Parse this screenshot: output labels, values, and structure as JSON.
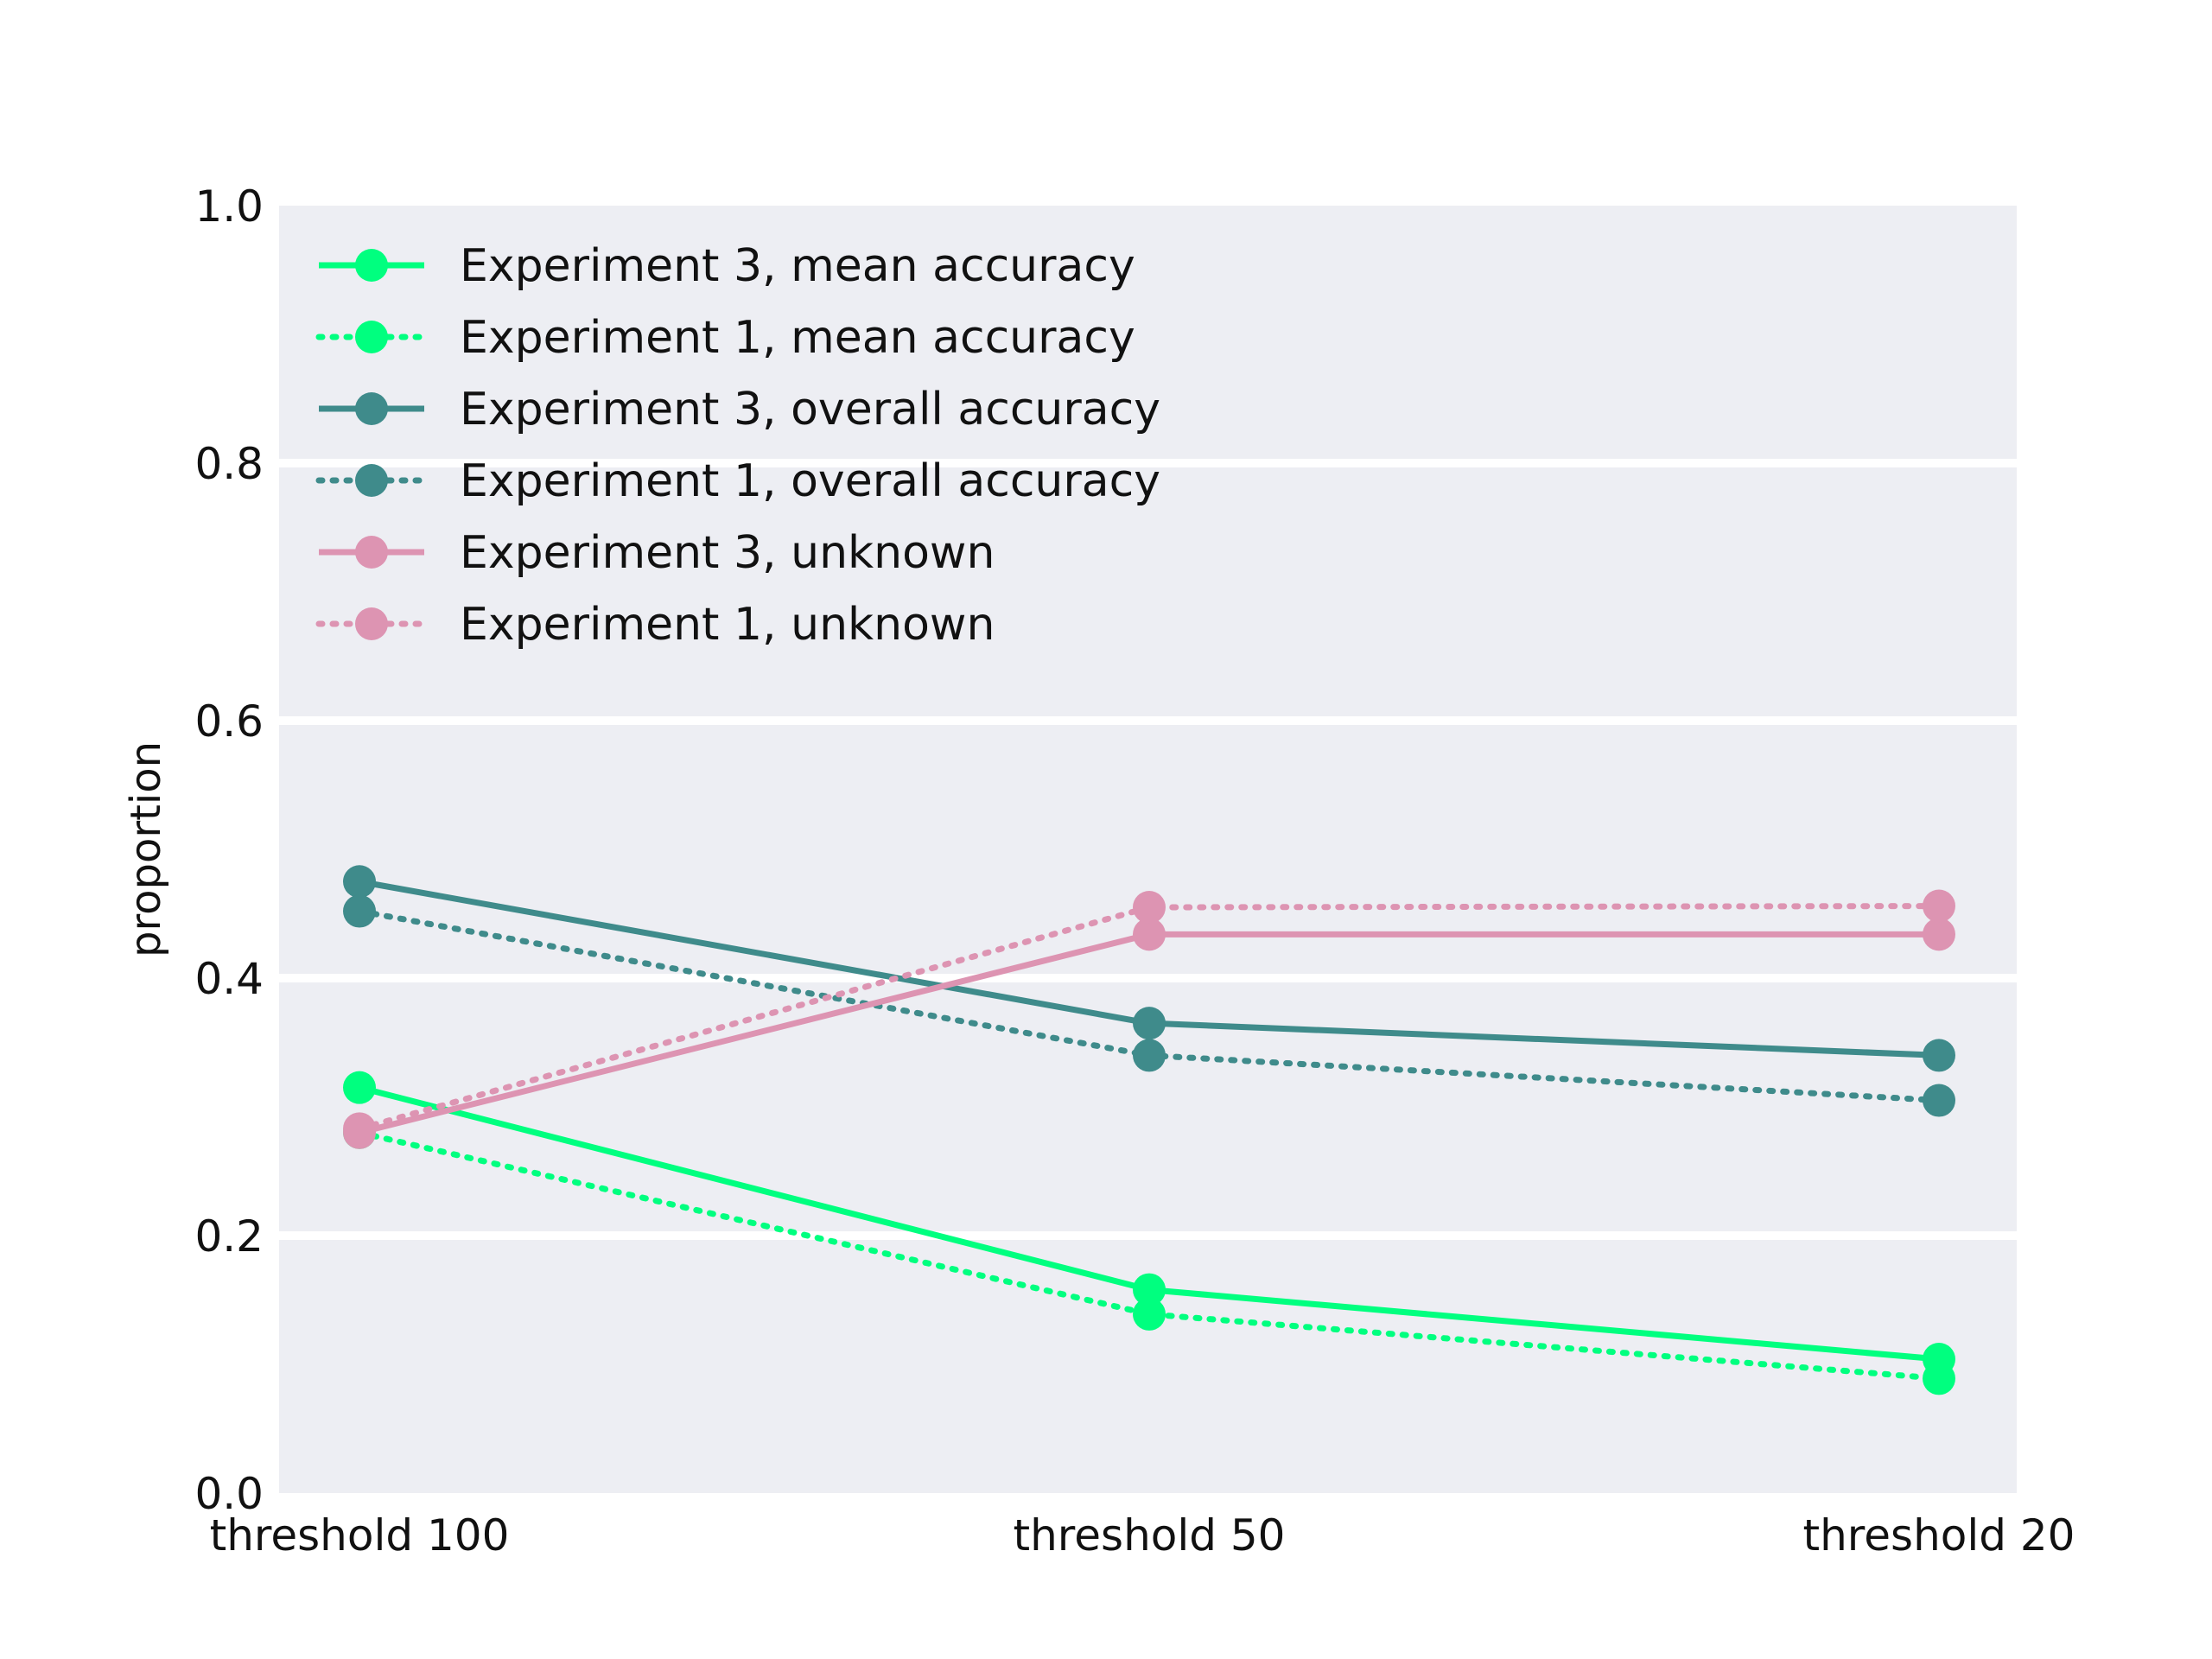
{
  "chart_data": {
    "type": "line",
    "title": "",
    "xlabel": "",
    "ylabel": "proportion",
    "categories": [
      "threshold 100",
      "threshold 50",
      "threshold 20"
    ],
    "ylim": [
      0.0,
      1.0
    ],
    "yticks": [
      "0.0",
      "0.2",
      "0.4",
      "0.6",
      "0.8",
      "1.0"
    ],
    "grid": "horizontal",
    "legend_position": "top-left",
    "series": [
      {
        "name": "Experiment 3, mean accuracy",
        "values": [
          0.315,
          0.158,
          0.104
        ],
        "color": "#00ff7f",
        "dash": "solid"
      },
      {
        "name": "Experiment 1, mean accuracy",
        "values": [
          0.28,
          0.139,
          0.089
        ],
        "color": "#00ff7f",
        "dash": "dotted"
      },
      {
        "name": "Experiment 3, overall accuracy",
        "values": [
          0.475,
          0.365,
          0.34
        ],
        "color": "#3f8b8b",
        "dash": "solid"
      },
      {
        "name": "Experiment 1, overall accuracy",
        "values": [
          0.452,
          0.34,
          0.305
        ],
        "color": "#3f8b8b",
        "dash": "dotted"
      },
      {
        "name": "Experiment 3, unknown",
        "values": [
          0.28,
          0.434,
          0.434
        ],
        "color": "#dd94b2",
        "dash": "solid"
      },
      {
        "name": "Experiment 1, unknown",
        "values": [
          0.283,
          0.455,
          0.456
        ],
        "color": "#dd94b2",
        "dash": "dotted"
      }
    ]
  }
}
